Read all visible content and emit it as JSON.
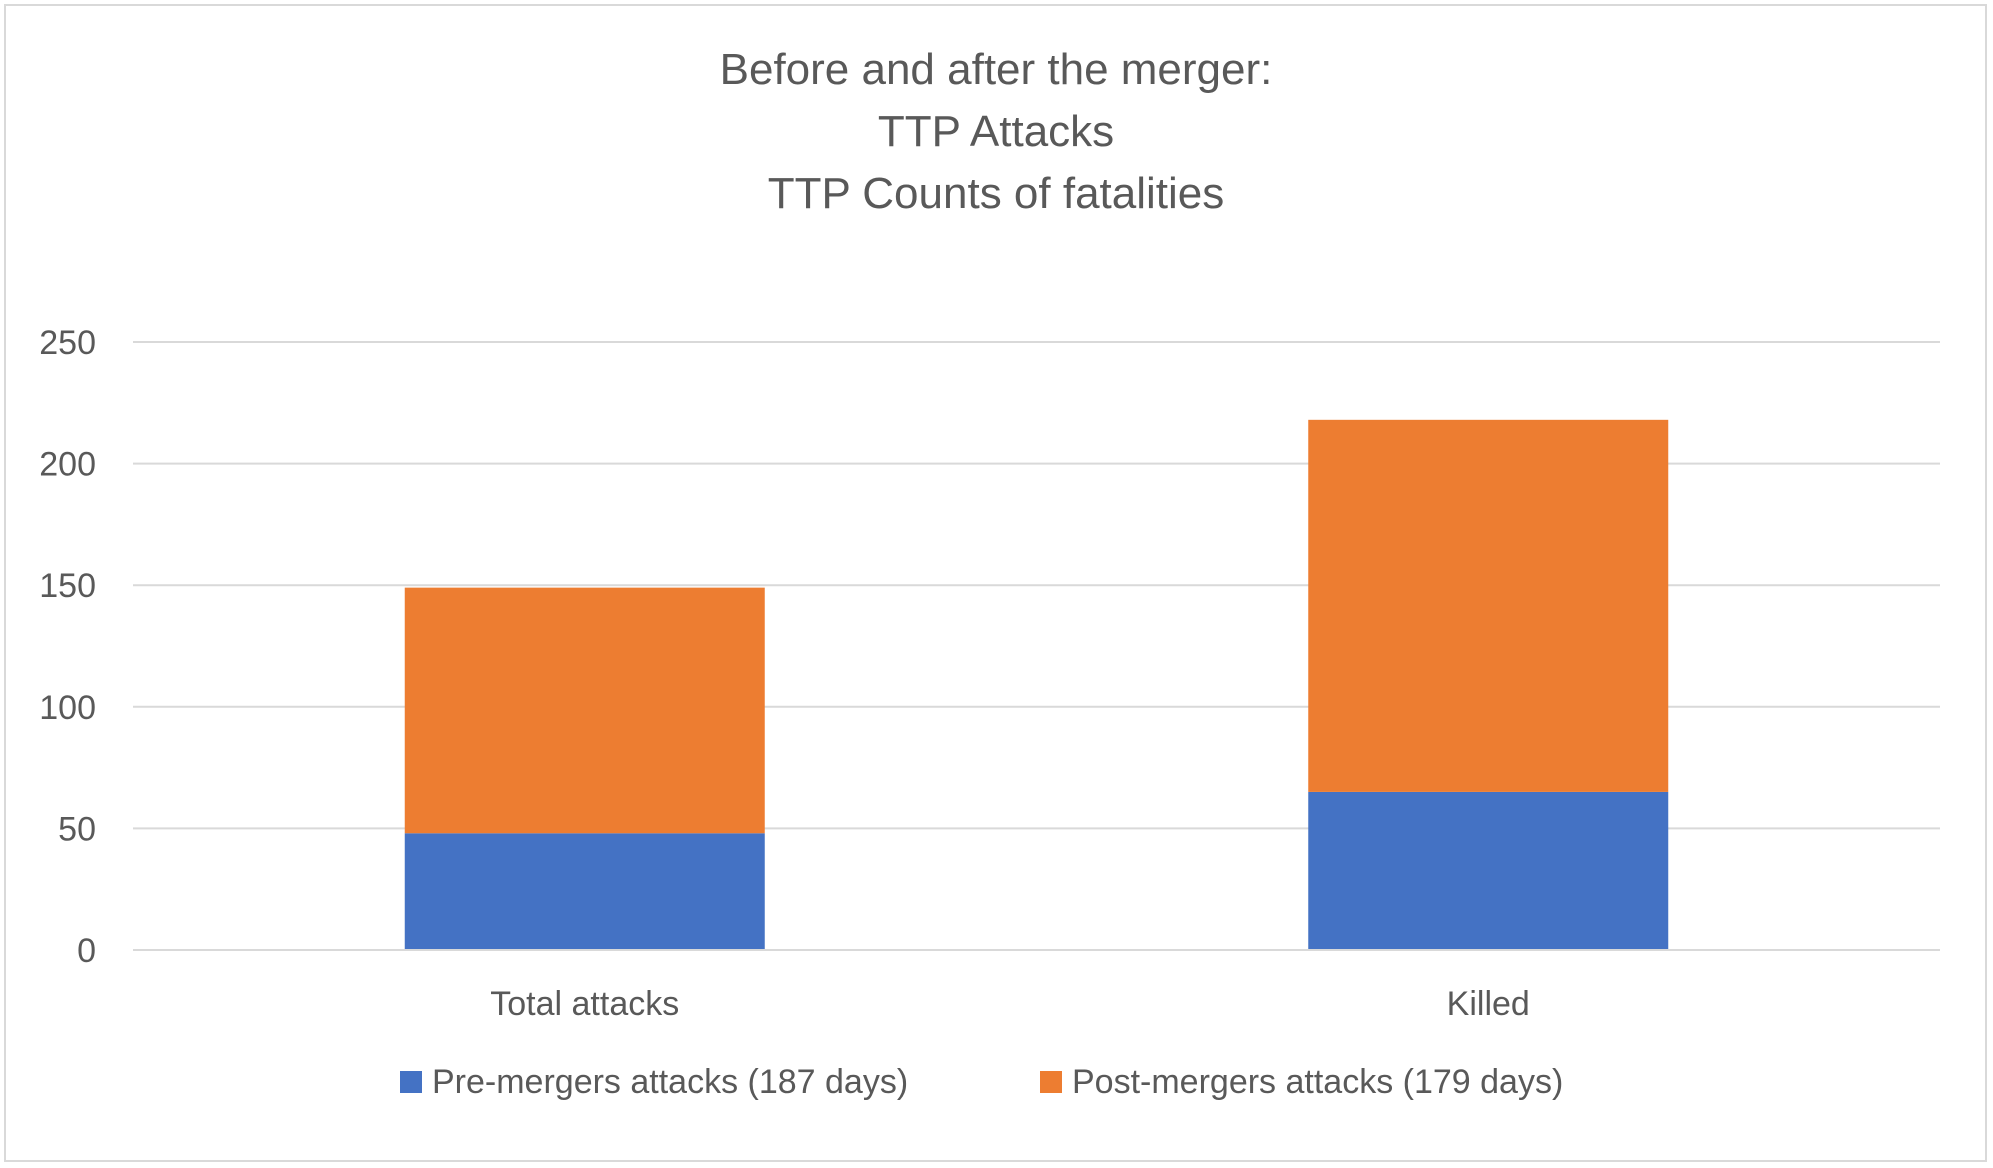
{
  "chart_data": {
    "type": "bar",
    "stacked": true,
    "title_lines": [
      "Before and after the merger:",
      "TTP Attacks",
      "TTP Counts of fatalities"
    ],
    "categories": [
      "Total attacks",
      "Killed"
    ],
    "series": [
      {
        "name": "Pre-mergers attacks (187 days)",
        "color": "#4472c4",
        "values": [
          48,
          65
        ]
      },
      {
        "name": "Post-mergers attacks (179 days)",
        "color": "#ed7d31",
        "values": [
          101,
          153
        ]
      }
    ],
    "yticks": [
      0,
      50,
      100,
      150,
      200,
      250
    ],
    "ylim": [
      0,
      250
    ],
    "grid": true,
    "legend_position": "bottom"
  }
}
